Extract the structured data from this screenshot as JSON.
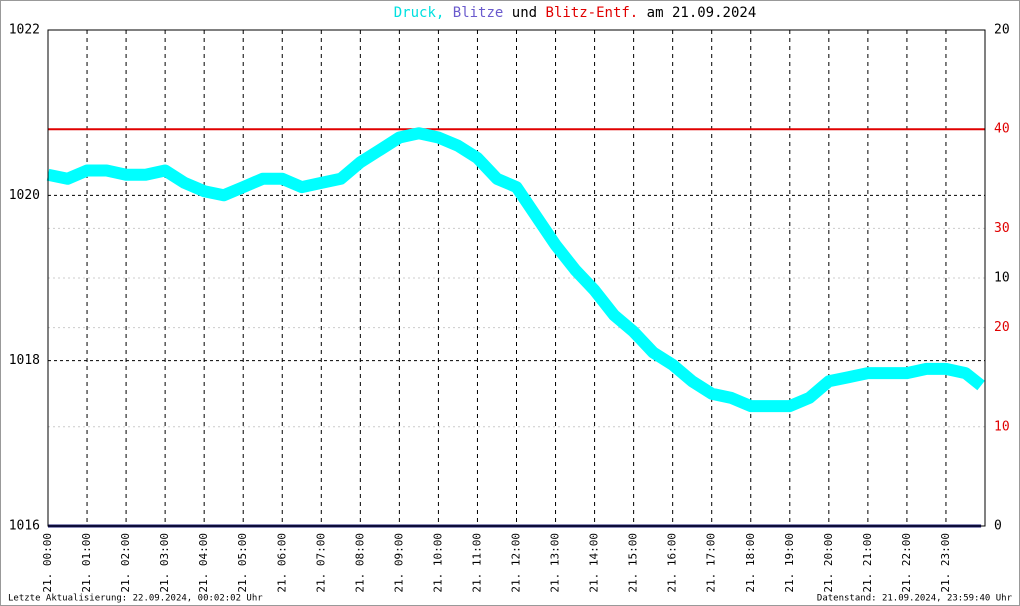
{
  "chart_data": {
    "type": "line",
    "title_parts": [
      {
        "text": "Druck,",
        "color": "#00e0e0"
      },
      {
        "text": "Blitze",
        "color": "#6a5acd"
      },
      {
        "text": "und",
        "color": "#000000"
      },
      {
        "text": "Blitz-Entf.",
        "color": "#e00000"
      },
      {
        "text": "am 21.09.2024",
        "color": "#000000"
      }
    ],
    "xlim": [
      0,
      24
    ],
    "xticks": [
      {
        "value": 0,
        "label": "21. 00:00"
      },
      {
        "value": 1,
        "label": "21. 01:00"
      },
      {
        "value": 2,
        "label": "21. 02:00"
      },
      {
        "value": 3,
        "label": "21. 03:00"
      },
      {
        "value": 4,
        "label": "21. 04:00"
      },
      {
        "value": 5,
        "label": "21. 05:00"
      },
      {
        "value": 6,
        "label": "21. 06:00"
      },
      {
        "value": 7,
        "label": "21. 07:00"
      },
      {
        "value": 8,
        "label": "21. 08:00"
      },
      {
        "value": 9,
        "label": "21. 09:00"
      },
      {
        "value": 10,
        "label": "21. 10:00"
      },
      {
        "value": 11,
        "label": "21. 11:00"
      },
      {
        "value": 12,
        "label": "21. 12:00"
      },
      {
        "value": 13,
        "label": "21. 13:00"
      },
      {
        "value": 14,
        "label": "21. 14:00"
      },
      {
        "value": 15,
        "label": "21. 15:00"
      },
      {
        "value": 16,
        "label": "21. 16:00"
      },
      {
        "value": 17,
        "label": "21. 17:00"
      },
      {
        "value": 18,
        "label": "21. 18:00"
      },
      {
        "value": 19,
        "label": "21. 19:00"
      },
      {
        "value": 20,
        "label": "21. 20:00"
      },
      {
        "value": 21,
        "label": "21. 21:00"
      },
      {
        "value": 22,
        "label": "21. 22:00"
      },
      {
        "value": 23,
        "label": "21. 23:00"
      }
    ],
    "ylim": [
      1016,
      1022
    ],
    "yticks": [
      1016,
      1018,
      1020,
      1022
    ],
    "y2lim": [
      0,
      20
    ],
    "y2ticks": [
      0,
      10,
      20
    ],
    "y3lim": [
      0,
      50
    ],
    "y3ticks": [
      10,
      20,
      30,
      40
    ],
    "y3color": "#e00000",
    "reference_line": {
      "value": 40,
      "axis": "y3",
      "color": "#e00000"
    },
    "series": [
      {
        "name": "Druck",
        "color": "#00ffff",
        "axis": "y",
        "x": [
          0,
          0.5,
          1,
          1.5,
          2,
          2.5,
          3,
          3.5,
          4,
          4.5,
          5,
          5.5,
          6,
          6.5,
          7,
          7.5,
          8,
          8.5,
          9,
          9.5,
          10,
          10.5,
          11,
          11.5,
          12,
          12.5,
          13,
          13.5,
          14,
          14.5,
          15,
          15.5,
          16,
          16.5,
          17,
          17.5,
          18,
          18.5,
          19,
          19.5,
          20,
          20.5,
          21,
          21.5,
          22,
          22.5,
          23,
          23.5,
          23.9
        ],
        "values": [
          1020.25,
          1020.2,
          1020.3,
          1020.3,
          1020.25,
          1020.25,
          1020.3,
          1020.15,
          1020.05,
          1020.0,
          1020.1,
          1020.2,
          1020.2,
          1020.1,
          1020.15,
          1020.2,
          1020.4,
          1020.55,
          1020.7,
          1020.75,
          1020.7,
          1020.6,
          1020.45,
          1020.2,
          1020.1,
          1019.75,
          1019.4,
          1019.1,
          1018.85,
          1018.55,
          1018.35,
          1018.1,
          1017.95,
          1017.75,
          1017.6,
          1017.55,
          1017.45,
          1017.45,
          1017.45,
          1017.55,
          1017.75,
          1017.8,
          1017.85,
          1017.85,
          1017.85,
          1017.9,
          1017.9,
          1017.85,
          1017.7
        ]
      },
      {
        "name": "Blitze",
        "color": "#191970",
        "axis": "y2",
        "x": [
          0,
          23.9
        ],
        "values": [
          0,
          0
        ]
      }
    ],
    "footer_left": "Letzte Aktualisierung: 22.09.2024, 00:02:02 Uhr",
    "footer_right": "Datenstand: 21.09.2024, 23:59:40 Uhr"
  }
}
